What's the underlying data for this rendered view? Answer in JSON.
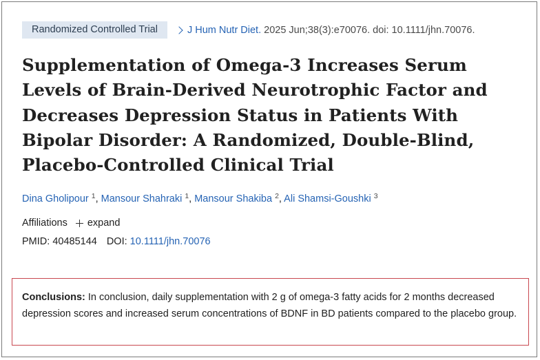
{
  "citation": {
    "article_type": "Randomized Controlled Trial",
    "journal": "J Hum Nutr Diet.",
    "details": "2025 Jun;38(3):e70076. doi: 10.1111/jhn.70076."
  },
  "title": "Supplementation of Omega-3 Increases Serum Levels of Brain-Derived Neurotrophic Factor and Decreases Depression Status in Patients With Bipolar Disorder: A Randomized, Double-Blind, Placebo-Controlled Clinical Trial",
  "authors": [
    {
      "name": "Dina Gholipour",
      "affiliation": "1"
    },
    {
      "name": "Mansour Shahraki",
      "affiliation": "1"
    },
    {
      "name": "Mansour Shakiba",
      "affiliation": "2"
    },
    {
      "name": "Ali Shamsi-Goushki",
      "affiliation": "3"
    }
  ],
  "author_separator": ", ",
  "affiliations": {
    "label": "Affiliations",
    "expand_label": "expand"
  },
  "identifiers": {
    "pmid_label": "PMID:",
    "pmid": "40485144",
    "doi_label": "DOI:",
    "doi": "10.1111/jhn.70076"
  },
  "conclusions": {
    "label": "Conclusions:",
    "text": "In conclusion, daily supplementation with 2 g of omega-3 fatty acids for 2 months decreased depression scores and increased serum concentrations of BDNF in BD patients compared to the placebo group."
  }
}
